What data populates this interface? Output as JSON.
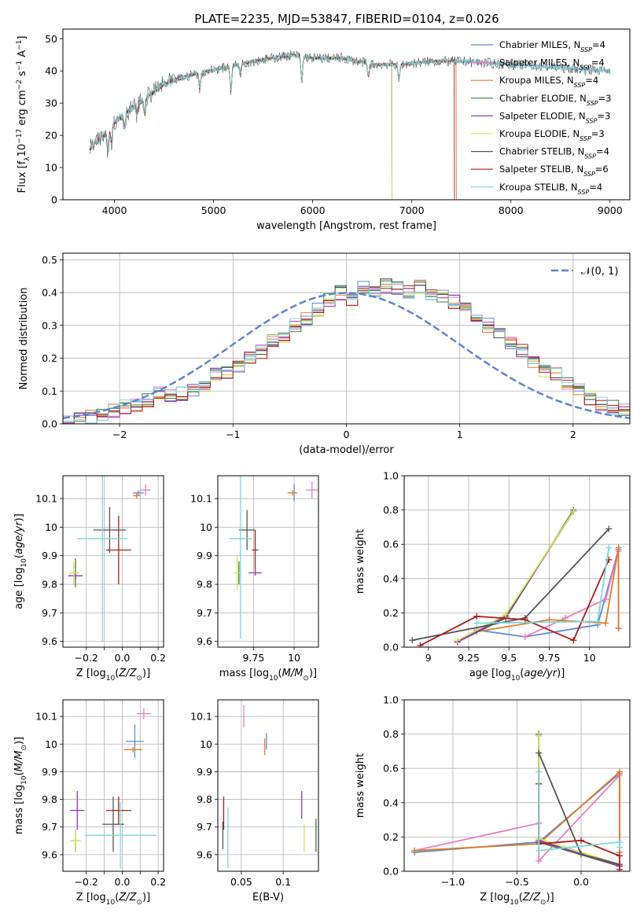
{
  "figure": {
    "title": "PLATE=2235, MJD=53847, FIBERID=0104, z=0.026"
  },
  "colors": {
    "grid": "#b0b0b0",
    "gauss": "#5a86d1"
  },
  "chart_data": [
    {
      "id": "spectrum",
      "type": "line",
      "title": "PLATE=2235, MJD=53847, FIBERID=0104, z=0.026",
      "xlabel": "wavelength [Angstrom, rest frame]",
      "ylabel": "Flux [f_λ10^-17 erg cm^-2 s^-1 A^-1]",
      "xlim": [
        3480,
        9200
      ],
      "ylim": [
        0,
        53
      ],
      "xticks": [
        4000,
        5000,
        6000,
        7000,
        8000,
        9000
      ],
      "yticks": [
        0,
        10,
        20,
        30,
        40,
        50
      ],
      "grid": false,
      "legend_position": "upper-right",
      "series": [
        {
          "name": "Chabrier MILES, N_SSP=4",
          "color": "#5b8bd4",
          "range": [
            3750,
            9000
          ]
        },
        {
          "name": "Salpeter MILES, N_SSP=4",
          "color": "#e87fbf",
          "range": [
            3750,
            9000
          ]
        },
        {
          "name": "Kroupa MILES, N_SSP=4",
          "color": "#e07a2d",
          "range": [
            3750,
            7450
          ]
        },
        {
          "name": "Chabrier ELODIE, N_SSP=3",
          "color": "#3a7a3a",
          "range": [
            3900,
            6800
          ]
        },
        {
          "name": "Salpeter ELODIE, N_SSP=3",
          "color": "#9a2fb5",
          "range": [
            3900,
            6800
          ]
        },
        {
          "name": "Kroupa ELODIE, N_SSP=3",
          "color": "#d8e35a",
          "range": [
            3900,
            6800
          ]
        },
        {
          "name": "Chabrier STELIB, N_SSP=4",
          "color": "#555555",
          "range": [
            3750,
            9000
          ]
        },
        {
          "name": "Salpeter STELIB, N_SSP=6",
          "color": "#b01b1b",
          "range": [
            3750,
            7430
          ]
        },
        {
          "name": "Kroupa STELIB, N_SSP=4",
          "color": "#7dd6d8",
          "range": [
            3750,
            9000
          ]
        }
      ],
      "legend_labels": [
        {
          "pre": "Chabrier MILES, N",
          "sub": "SSP",
          "post": "=4"
        },
        {
          "pre": "Salpeter MILES, N",
          "sub": "SSP",
          "post": "=4"
        },
        {
          "pre": "Kroupa MILES, N",
          "sub": "SSP",
          "post": "=4"
        },
        {
          "pre": "Chabrier ELODIE, N",
          "sub": "SSP",
          "post": "=3"
        },
        {
          "pre": "Salpeter ELODIE, N",
          "sub": "SSP",
          "post": "=3"
        },
        {
          "pre": "Kroupa ELODIE, N",
          "sub": "SSP",
          "post": "=3"
        },
        {
          "pre": "Chabrier STELIB, N",
          "sub": "SSP",
          "post": "=4"
        },
        {
          "pre": "Salpeter STELIB, N",
          "sub": "SSP",
          "post": "=6"
        },
        {
          "pre": "Kroupa STELIB, N",
          "sub": "SSP",
          "post": "=4"
        }
      ],
      "continuum_knots": [
        [
          3750,
          16
        ],
        [
          3900,
          20
        ],
        [
          4000,
          24
        ],
        [
          4200,
          29
        ],
        [
          4500,
          36
        ],
        [
          4800,
          39
        ],
        [
          5100,
          41
        ],
        [
          5400,
          43
        ],
        [
          5800,
          45
        ],
        [
          6000,
          44
        ],
        [
          6300,
          44
        ],
        [
          6600,
          42
        ],
        [
          6900,
          42
        ],
        [
          7200,
          43
        ],
        [
          7500,
          43
        ],
        [
          8000,
          42
        ],
        [
          8500,
          41
        ],
        [
          9000,
          40
        ]
      ],
      "absorption_lines": [
        [
          3934,
          6
        ],
        [
          3969,
          5
        ],
        [
          4102,
          4
        ],
        [
          4227,
          3
        ],
        [
          4305,
          5
        ],
        [
          4861,
          5
        ],
        [
          5175,
          8
        ],
        [
          5270,
          3
        ],
        [
          5890,
          8
        ],
        [
          6563,
          4
        ],
        [
          6870,
          5
        ]
      ]
    },
    {
      "id": "residuals",
      "type": "step",
      "xlabel": "(data-model)/error",
      "ylabel": "Normed distribution",
      "xlim": [
        -2.5,
        2.5
      ],
      "ylim": [
        0,
        0.52
      ],
      "xticks": [
        -2,
        -1,
        0,
        1,
        2
      ],
      "yticks": [
        0.0,
        0.1,
        0.2,
        0.3,
        0.4,
        0.5
      ],
      "grid": true,
      "legend": "𝒩(0, 1)",
      "legend_position": "upper-right",
      "bin_edges_start": -2.5,
      "bin_width": 0.1,
      "base_heights": [
        0.005,
        0.012,
        0.02,
        0.03,
        0.04,
        0.05,
        0.06,
        0.072,
        0.09,
        0.085,
        0.09,
        0.1,
        0.12,
        0.15,
        0.16,
        0.17,
        0.2,
        0.22,
        0.25,
        0.27,
        0.3,
        0.32,
        0.35,
        0.38,
        0.4,
        0.38,
        0.42,
        0.4,
        0.42,
        0.41,
        0.4,
        0.42,
        0.4,
        0.39,
        0.37,
        0.35,
        0.32,
        0.3,
        0.28,
        0.25,
        0.22,
        0.19,
        0.16,
        0.15,
        0.12,
        0.1,
        0.08,
        0.06,
        0.05,
        0.04
      ],
      "gauss_dash": "#5a86d1"
    },
    {
      "id": "z-age",
      "type": "errorbar",
      "xlabel": "Z [log10(Z/Z⊙)]",
      "ylabel": "age [log10(age/yr)]",
      "xlim": [
        -0.33,
        0.23
      ],
      "ylim": [
        9.58,
        10.18
      ],
      "xticks": [
        -0.2,
        -0.1,
        0.0,
        0.1,
        0.2
      ],
      "yticks": [
        9.6,
        9.7,
        9.8,
        9.9,
        10.0,
        10.1
      ],
      "xticklabels": [
        "−0.2",
        "",
        "0.0",
        "",
        "0.2"
      ],
      "points": [
        {
          "c": "#5b8bd4",
          "x": 0.09,
          "y": 10.12,
          "xe": 0.03,
          "ye": 0.01
        },
        {
          "c": "#e87fbf",
          "x": 0.13,
          "y": 10.13,
          "xe": 0.03,
          "ye": 0.02
        },
        {
          "c": "#e07a2d",
          "x": 0.08,
          "y": 10.11,
          "xe": 0.02,
          "ye": 0.01
        },
        {
          "c": "#3a7a3a",
          "x": -0.26,
          "y": 9.84,
          "xe": 0.02,
          "ye": 0.05
        },
        {
          "c": "#9a2fb5",
          "x": -0.26,
          "y": 9.83,
          "xe": 0.04,
          "ye": 0.01
        },
        {
          "c": "#d8e35a",
          "x": -0.27,
          "y": 9.84,
          "xe": 0.03,
          "ye": 0.04
        },
        {
          "c": "#555555",
          "x": -0.07,
          "y": 9.99,
          "xe": 0.09,
          "ye": 0.08
        },
        {
          "c": "#b01b1b",
          "x": -0.02,
          "y": 9.92,
          "xe": 0.07,
          "ye": 0.12
        },
        {
          "c": "#7dd6d8",
          "x": -0.11,
          "y": 9.96,
          "xe": 0.14,
          "ye": 0.36
        }
      ]
    },
    {
      "id": "mass-age",
      "type": "errorbar",
      "xlabel": "mass [log10(M/M⊙)]",
      "ylabel": "",
      "xlim": [
        9.53,
        10.15
      ],
      "ylim": [
        9.58,
        10.18
      ],
      "xticks": [
        9.75,
        10.0
      ],
      "yticks": [
        9.6,
        9.7,
        9.8,
        9.9,
        10.0,
        10.1
      ],
      "points": [
        {
          "c": "#5b8bd4",
          "x": 10.0,
          "y": 10.12,
          "xe": 0.01,
          "ye": 0.03
        },
        {
          "c": "#e87fbf",
          "x": 10.11,
          "y": 10.13,
          "xe": 0.04,
          "ye": 0.03
        },
        {
          "c": "#e07a2d",
          "x": 9.99,
          "y": 10.12,
          "xe": 0.03,
          "ye": 0.01
        },
        {
          "c": "#3a7a3a",
          "x": 9.66,
          "y": 9.84,
          "xe": 0.01,
          "ye": 0.04
        },
        {
          "c": "#9a2fb5",
          "x": 9.76,
          "y": 9.84,
          "xe": 0.04,
          "ye": 0.01
        },
        {
          "c": "#d8e35a",
          "x": 9.65,
          "y": 9.84,
          "xe": 0.02,
          "ye": 0.06
        },
        {
          "c": "#555555",
          "x": 9.71,
          "y": 9.99,
          "xe": 0.05,
          "ye": 0.07
        },
        {
          "c": "#b01b1b",
          "x": 9.76,
          "y": 9.92,
          "xe": 0.02,
          "ye": 0.07
        },
        {
          "c": "#7dd6d8",
          "x": 9.67,
          "y": 9.96,
          "xe": 0.07,
          "ye": 0.35
        }
      ]
    },
    {
      "id": "age-weight",
      "type": "line",
      "xlabel": "age [log10(age/yr)]",
      "ylabel": "mass weight",
      "xlim": [
        8.85,
        10.25
      ],
      "ylim": [
        0,
        1
      ],
      "xticks": [
        9.0,
        9.25,
        9.5,
        9.75,
        10.0
      ],
      "yticks": [
        0.0,
        0.2,
        0.4,
        0.6,
        0.8,
        1.0
      ],
      "series": [
        {
          "c": "#5b8bd4",
          "pts": [
            [
              9.3,
              0.1
            ],
            [
              9.6,
              0.06
            ],
            [
              10.05,
              0.13
            ],
            [
              10.18,
              0.57
            ],
            [
              10.18,
              0.11
            ]
          ]
        },
        {
          "c": "#e87fbf",
          "pts": [
            [
              9.6,
              0.06
            ],
            [
              9.85,
              0.17
            ],
            [
              10.1,
              0.28
            ],
            [
              10.18,
              0.56
            ],
            [
              10.18,
              0.11
            ]
          ]
        },
        {
          "c": "#e07a2d",
          "pts": [
            [
              9.3,
              0.09
            ],
            [
              9.75,
              0.16
            ],
            [
              10.1,
              0.14
            ],
            [
              10.18,
              0.58
            ],
            [
              10.18,
              0.11
            ]
          ]
        },
        {
          "c": "#3a7a3a",
          "pts": [
            [
              9.18,
              0.03
            ],
            [
              9.48,
              0.17
            ],
            [
              9.9,
              0.8
            ]
          ]
        },
        {
          "c": "#9a2fb5",
          "pts": [
            [
              9.18,
              0.03
            ],
            [
              9.48,
              0.18
            ],
            [
              9.9,
              0.79
            ]
          ]
        },
        {
          "c": "#d8e35a",
          "pts": [
            [
              9.18,
              0.04
            ],
            [
              9.48,
              0.19
            ],
            [
              9.9,
              0.79
            ]
          ]
        },
        {
          "c": "#555555",
          "pts": [
            [
              8.9,
              0.04
            ],
            [
              9.6,
              0.17
            ],
            [
              10.12,
              0.69
            ]
          ]
        },
        {
          "c": "#b01b1b",
          "pts": [
            [
              8.95,
              0.01
            ],
            [
              9.3,
              0.18
            ],
            [
              9.6,
              0.16
            ],
            [
              9.9,
              0.04
            ],
            [
              10.12,
              0.51
            ]
          ]
        },
        {
          "c": "#7dd6d8",
          "pts": [
            [
              9.3,
              0.14
            ],
            [
              10.05,
              0.15
            ],
            [
              10.12,
              0.58
            ]
          ]
        }
      ]
    },
    {
      "id": "z-mass",
      "type": "errorbar",
      "xlabel": "Z [log10(Z/Z⊙)]",
      "ylabel": "mass [log10(M/M⊙)]",
      "xlim": [
        -0.33,
        0.23
      ],
      "ylim": [
        9.54,
        10.16
      ],
      "xticks": [
        -0.2,
        -0.1,
        0.0,
        0.1,
        0.2
      ],
      "yticks": [
        9.6,
        9.7,
        9.8,
        9.9,
        10.0,
        10.1
      ],
      "xticklabels": [
        "−0.2",
        "",
        "0.0",
        "",
        "0.2"
      ],
      "points": [
        {
          "c": "#5b8bd4",
          "x": 0.07,
          "y": 10.01,
          "xe": 0.05,
          "ye": 0.06
        },
        {
          "c": "#e87fbf",
          "x": 0.12,
          "y": 10.11,
          "xe": 0.04,
          "ye": 0.02
        },
        {
          "c": "#e07a2d",
          "x": 0.06,
          "y": 9.98,
          "xe": 0.05,
          "ye": 0.01
        },
        {
          "c": "#3a7a3a",
          "x": -0.26,
          "y": 9.65,
          "xe": 0.02,
          "ye": 0.04
        },
        {
          "c": "#9a2fb5",
          "x": -0.25,
          "y": 9.76,
          "xe": 0.04,
          "ye": 0.07
        },
        {
          "c": "#d8e35a",
          "x": -0.26,
          "y": 9.65,
          "xe": 0.03,
          "ye": 0.04
        },
        {
          "c": "#555555",
          "x": -0.05,
          "y": 9.71,
          "xe": 0.06,
          "ye": 0.1
        },
        {
          "c": "#b01b1b",
          "x": -0.02,
          "y": 9.76,
          "xe": 0.07,
          "ye": 0.05
        },
        {
          "c": "#7dd6d8",
          "x": -0.01,
          "y": 9.67,
          "xe": 0.2,
          "ye": 0.12
        }
      ]
    },
    {
      "id": "ebv-mass",
      "type": "errorbar",
      "xlabel": "E(B-V)",
      "ylabel": "",
      "xlim": [
        0.022,
        0.142
      ],
      "ylim": [
        9.54,
        10.16
      ],
      "xticks": [
        0.05,
        0.1
      ],
      "yticks": [
        9.6,
        9.7,
        9.8,
        9.9,
        10.0,
        10.1
      ],
      "points": [
        {
          "c": "#5b8bd4",
          "x": 0.08,
          "y": 10.01,
          "xe": 0,
          "ye": 0.03
        },
        {
          "c": "#e87fbf",
          "x": 0.053,
          "y": 10.1,
          "xe": 0,
          "ye": 0.04
        },
        {
          "c": "#e07a2d",
          "x": 0.078,
          "y": 9.99,
          "xe": 0,
          "ye": 0.03
        },
        {
          "c": "#3a7a3a",
          "x": 0.139,
          "y": 9.67,
          "xe": 0,
          "ye": 0.06
        },
        {
          "c": "#9a2fb5",
          "x": 0.122,
          "y": 9.78,
          "xe": 0,
          "ye": 0.05
        },
        {
          "c": "#d8e35a",
          "x": 0.125,
          "y": 9.66,
          "xe": 0,
          "ye": 0.05
        },
        {
          "c": "#555555",
          "x": 0.028,
          "y": 9.67,
          "xe": 0,
          "ye": 0.05
        },
        {
          "c": "#b01b1b",
          "x": 0.029,
          "y": 9.75,
          "xe": 0,
          "ye": 0.06
        },
        {
          "c": "#7dd6d8",
          "x": 0.034,
          "y": 9.66,
          "xe": 0,
          "ye": 0.11
        }
      ]
    },
    {
      "id": "z-weight",
      "type": "line",
      "xlabel": "Z [log10(Z/Z⊙)]",
      "ylabel": "mass weight",
      "xlim": [
        -1.38,
        0.38
      ],
      "ylim": [
        0,
        1
      ],
      "xticks": [
        -1.0,
        -0.5,
        0.0
      ],
      "yticks": [
        0.0,
        0.2,
        0.4,
        0.6,
        0.8,
        1.0
      ],
      "xticklabels": [
        "−1.0",
        "−0.5",
        "0.0"
      ],
      "series": [
        {
          "c": "#5b8bd4",
          "pts": [
            [
              -1.3,
              0.11
            ],
            [
              -0.33,
              0.17
            ],
            [
              0.3,
              0.57
            ],
            [
              0.3,
              0.11
            ]
          ]
        },
        {
          "c": "#e87fbf",
          "pts": [
            [
              -1.3,
              0.12
            ],
            [
              -0.33,
              0.28
            ],
            [
              -0.33,
              0.06
            ],
            [
              0.3,
              0.56
            ]
          ]
        },
        {
          "c": "#e07a2d",
          "pts": [
            [
              -1.3,
              0.12
            ],
            [
              -0.33,
              0.16
            ],
            [
              0.3,
              0.58
            ],
            [
              0.3,
              0.11
            ]
          ]
        },
        {
          "c": "#3a7a3a",
          "pts": [
            [
              -0.33,
              0.8
            ],
            [
              -0.33,
              0.17
            ],
            [
              0.3,
              0.03
            ]
          ]
        },
        {
          "c": "#9a2fb5",
          "pts": [
            [
              -0.33,
              0.79
            ],
            [
              -0.33,
              0.18
            ],
            [
              0.3,
              0.03
            ]
          ]
        },
        {
          "c": "#d8e35a",
          "pts": [
            [
              -0.33,
              0.79
            ],
            [
              -0.33,
              0.19
            ],
            [
              0.3,
              0.04
            ]
          ]
        },
        {
          "c": "#555555",
          "pts": [
            [
              -0.33,
              0.69
            ],
            [
              0.0,
              0.1
            ],
            [
              0.3,
              0.04
            ]
          ]
        },
        {
          "c": "#b01b1b",
          "pts": [
            [
              -0.33,
              0.51
            ],
            [
              -0.33,
              0.16
            ],
            [
              0.0,
              0.18
            ],
            [
              0.3,
              0.09
            ],
            [
              0.3,
              0.01
            ]
          ]
        },
        {
          "c": "#7dd6d8",
          "pts": [
            [
              -0.33,
              0.58
            ],
            [
              -0.33,
              0.12
            ],
            [
              0.3,
              0.17
            ],
            [
              0.3,
              0.14
            ]
          ]
        }
      ]
    }
  ]
}
